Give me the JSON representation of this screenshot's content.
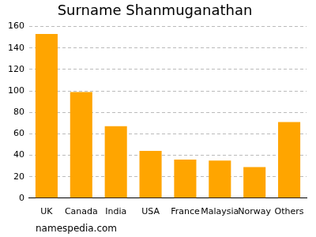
{
  "chart_data": {
    "type": "bar",
    "title": "Surname Shanmuganathan",
    "categories": [
      "UK",
      "Canada",
      "India",
      "USA",
      "France",
      "Malaysia",
      "Norway",
      "Others"
    ],
    "values": [
      153,
      99,
      67,
      44,
      36,
      35,
      29,
      71
    ],
    "color": "#ffa500",
    "ylim": [
      0,
      160
    ],
    "yticks": [
      0,
      20,
      40,
      60,
      80,
      100,
      120,
      140,
      160
    ],
    "grid": true,
    "source": "namespedia.com"
  }
}
